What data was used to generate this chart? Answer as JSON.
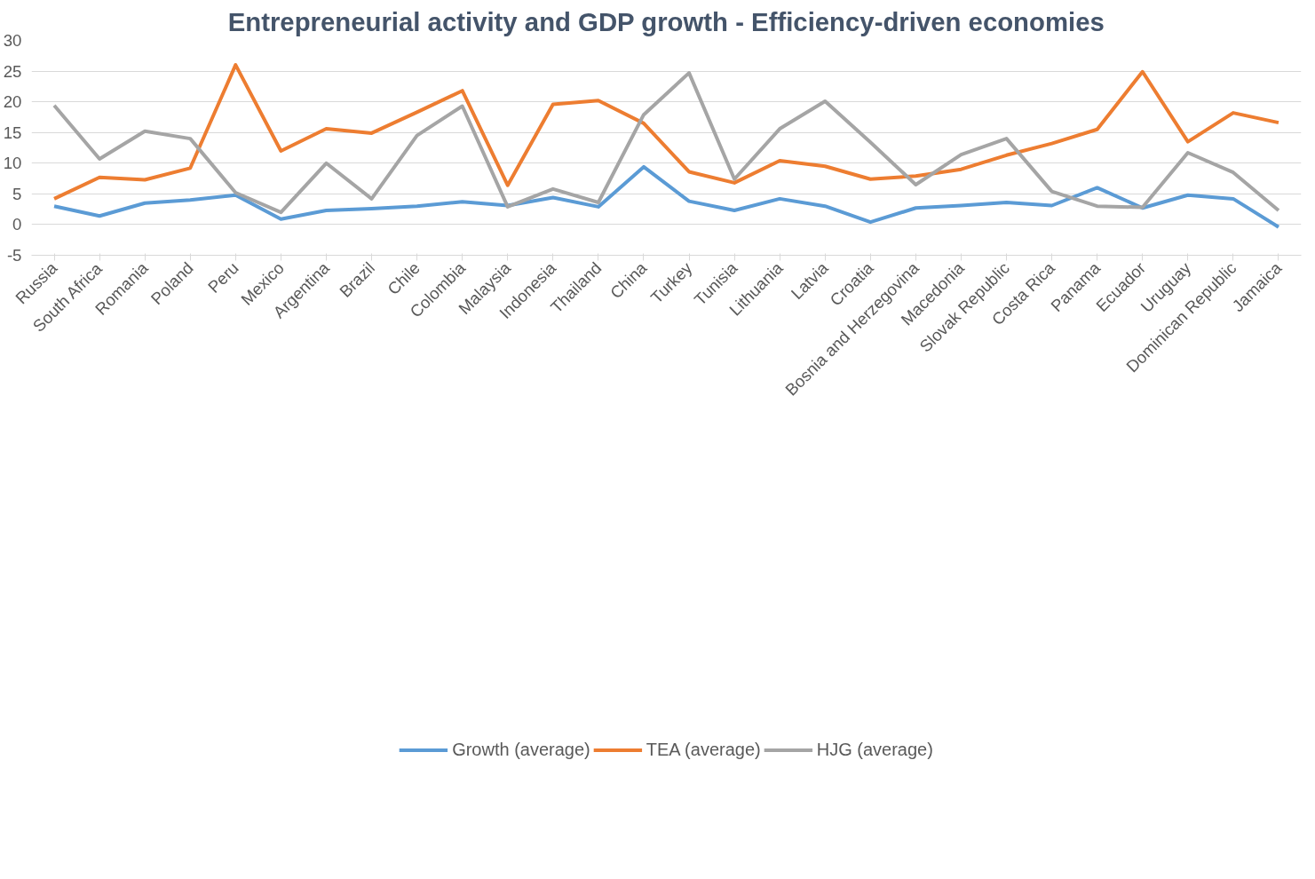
{
  "chart_data": {
    "type": "line",
    "title": "Entrepreneurial activity and GDP growth - Efficiency-driven economies",
    "categories": [
      "Russia",
      "South Africa",
      "Romania",
      "Poland",
      "Peru",
      "Mexico",
      "Argentina",
      "Brazil",
      "Chile",
      "Colombia",
      "Malaysia",
      "Indonesia",
      "Thailand",
      "China",
      "Turkey",
      "Tunisia",
      "Lithuania",
      "Latvia",
      "Croatia",
      "Bosnia and Herzegovina",
      "Macedonia",
      "Slovak Republic",
      "Costa Rica",
      "Panama",
      "Ecuador",
      "Uruguay",
      "Dominican Republic",
      "Jamaica"
    ],
    "series": [
      {
        "name": "Growth (average)",
        "color": "#5b9bd5",
        "values": [
          3.0,
          1.4,
          3.5,
          4.0,
          4.8,
          0.9,
          2.3,
          2.6,
          3.0,
          3.7,
          3.1,
          4.4,
          2.9,
          9.4,
          3.8,
          2.3,
          4.2,
          3.0,
          0.4,
          2.7,
          3.1,
          3.6,
          3.1,
          6.0,
          2.7,
          4.8,
          4.2,
          -0.4
        ]
      },
      {
        "name": "TEA (average)",
        "color": "#ed7d31",
        "values": [
          4.2,
          7.7,
          7.3,
          9.2,
          26.0,
          12.0,
          15.6,
          14.9,
          18.3,
          21.8,
          6.4,
          19.6,
          20.2,
          16.5,
          8.6,
          6.8,
          10.4,
          9.5,
          7.4,
          7.9,
          9.0,
          11.3,
          13.2,
          15.5,
          24.9,
          13.5,
          18.2,
          16.6
        ]
      },
      {
        "name": "HJG (average)",
        "color": "#a5a5a5",
        "values": [
          19.4,
          10.7,
          15.2,
          14.0,
          5.2,
          2.0,
          10.0,
          4.2,
          14.5,
          19.3,
          2.9,
          5.8,
          3.6,
          17.9,
          24.7,
          7.4,
          15.6,
          20.1,
          13.4,
          6.5,
          11.4,
          14.0,
          5.4,
          3.0,
          2.8,
          11.7,
          8.5,
          2.3
        ]
      }
    ],
    "ylim": [
      -5,
      30
    ],
    "yticks": [
      -5,
      0,
      5,
      10,
      15,
      20,
      25,
      30
    ],
    "grid": "y",
    "legend": "bottom",
    "marker": "none",
    "line_style": "solid"
  }
}
